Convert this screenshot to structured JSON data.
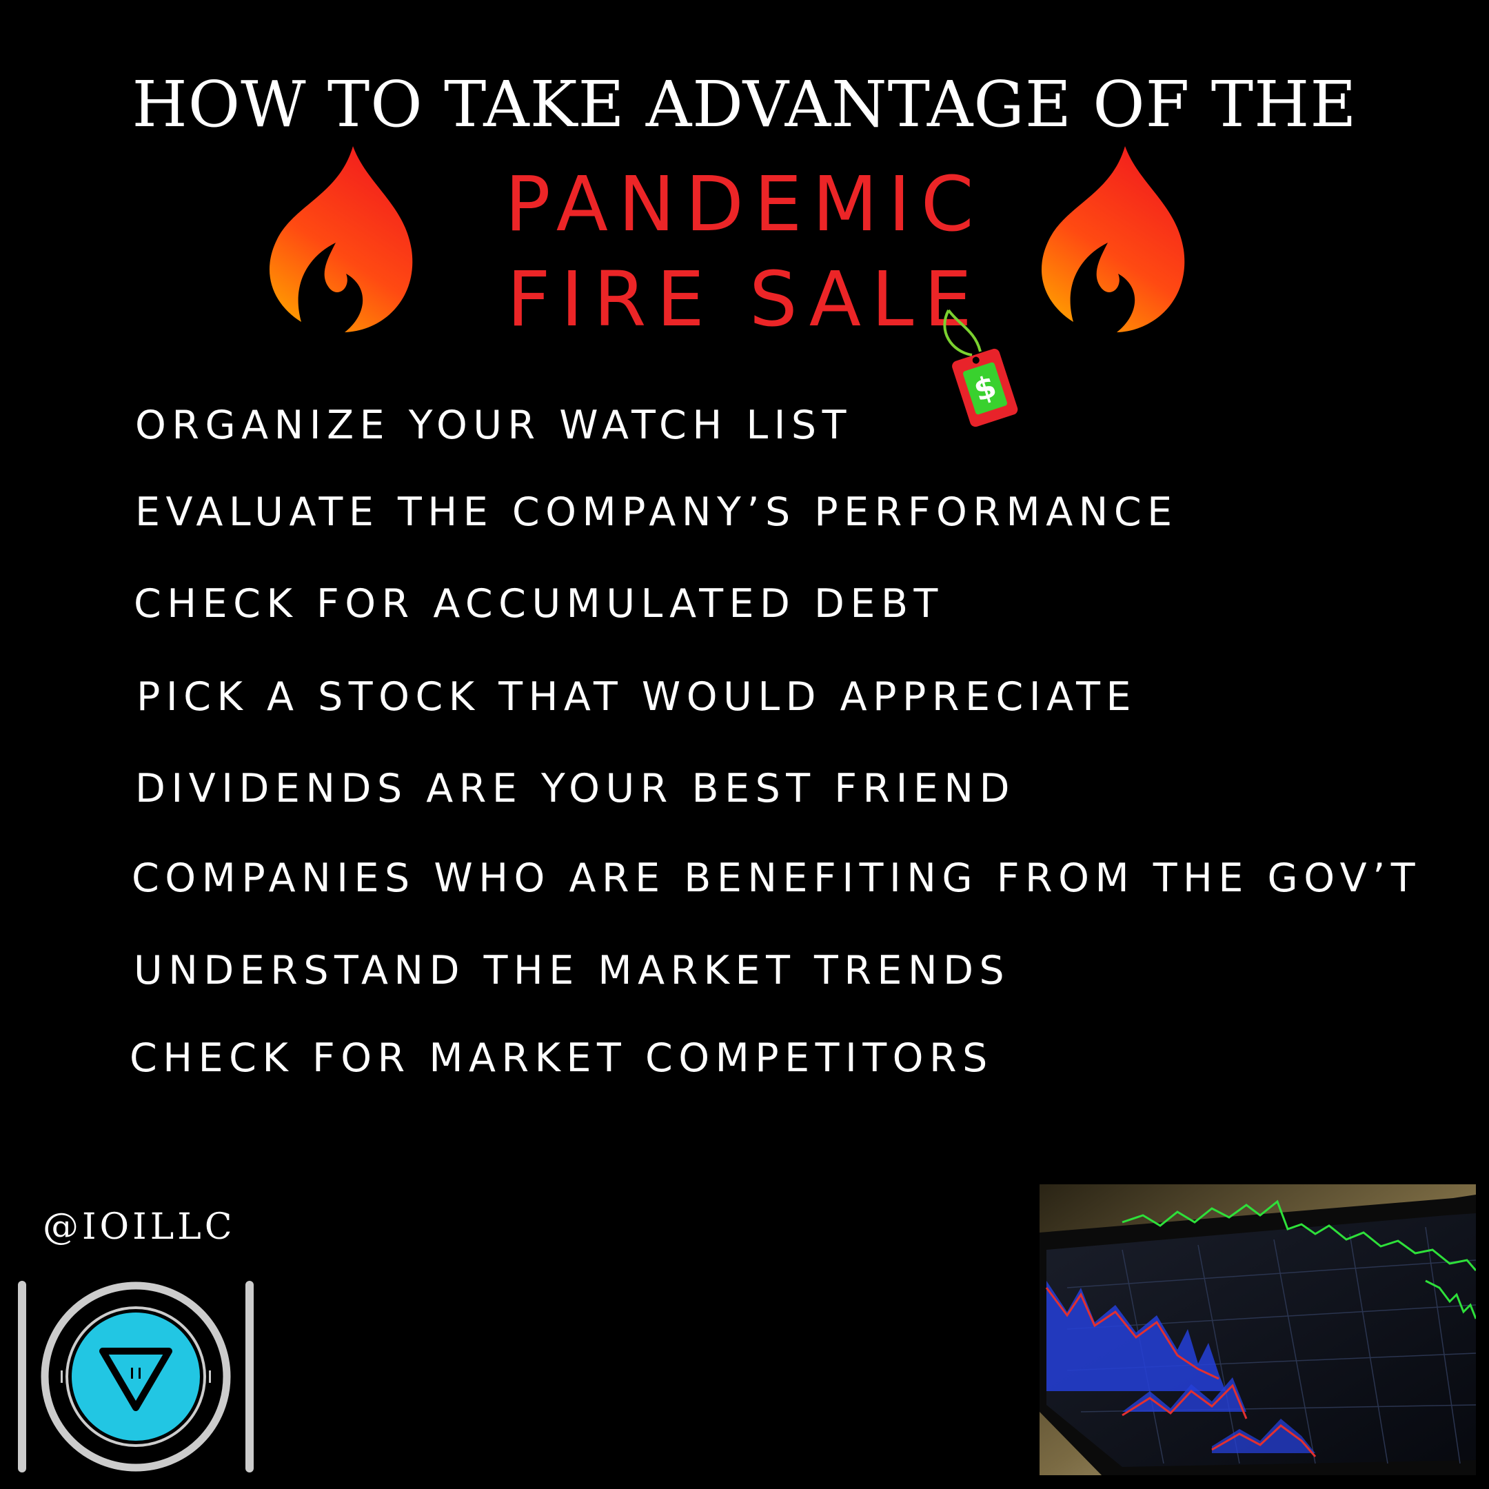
{
  "headline": "HOW TO TAKE ADVANTAGE OF THE",
  "fire_sale": {
    "line1": "PANDEMIC",
    "line2": "FIRE SALE",
    "color": "#ec2527"
  },
  "price_tag": {
    "symbol": "$",
    "tag_color": "#e8232a",
    "inner_color": "#39d12e"
  },
  "tips": [
    "ORGANIZE YOUR WATCH LIST",
    "EVALUATE THE COMPANY’S PERFORMANCE",
    "CHECK FOR ACCUMULATED DEBT",
    "PICK A STOCK THAT WOULD APPRECIATE",
    "DIVIDENDS ARE YOUR BEST FRIEND",
    "COMPANIES WHO ARE BENEFITING FROM THE GOV’T",
    "UNDERSTAND THE MARKET TRENDS",
    "CHECK FOR MARKET COMPETITORS"
  ],
  "handle": "@IOILLC",
  "logo": {
    "icon": "ioi-logo-icon",
    "accent_color": "#22c6e3",
    "ring_color": "#cccccc"
  },
  "photo": {
    "icon": "tablet-stock-chart-photo"
  },
  "colors": {
    "background": "#000000",
    "text": "#ffffff",
    "flame_top": "#f21d1d",
    "flame_bottom": "#ff9a00"
  }
}
